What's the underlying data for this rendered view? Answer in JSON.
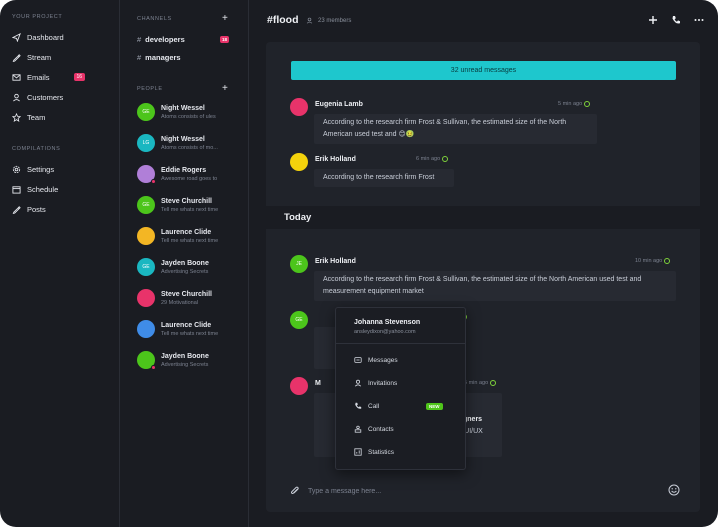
{
  "nav": {
    "section1": "YOUR PROJECT",
    "items": [
      {
        "label": "Dashboard",
        "icon": "send-icon"
      },
      {
        "label": "Stream",
        "icon": "pen-icon"
      },
      {
        "label": "Emails",
        "icon": "mail-icon",
        "badge": "16"
      },
      {
        "label": "Customers",
        "icon": "user-icon"
      },
      {
        "label": "Team",
        "icon": "star-icon"
      }
    ],
    "section2": "COMPILATIONS",
    "items2": [
      {
        "label": "Settings",
        "icon": "gear-icon"
      },
      {
        "label": "Schedule",
        "icon": "calendar-icon"
      },
      {
        "label": "Posts",
        "icon": "pen-icon"
      }
    ]
  },
  "channels": {
    "heading": "CHANNELS",
    "items": [
      {
        "hash": "#",
        "label": "developers",
        "badge": "18"
      },
      {
        "hash": "#",
        "label": "managers"
      }
    ]
  },
  "people": {
    "heading": "PEOPLE",
    "items": [
      {
        "name": "Night Wessel",
        "status": "Atoms consists of ules",
        "initials": "GE",
        "color": "#4cc51b"
      },
      {
        "name": "Night Wessel",
        "status": "Atoms consists of mo...",
        "initials": "LG",
        "color": "#1ab7c1"
      },
      {
        "name": "Eddie Rogers",
        "status": "Awesome road goes to",
        "initials": "",
        "color": "#b07fd8",
        "dot": true
      },
      {
        "name": "Steve Churchill",
        "status": "Tell me whats next time",
        "initials": "GE",
        "color": "#4cc51b"
      },
      {
        "name": "Laurence Clide",
        "status": "Tell me whats next time",
        "initials": "",
        "color": "#f3b624"
      },
      {
        "name": "Jayden Boone",
        "status": "Advertising Secrets",
        "initials": "GE",
        "color": "#1ab7c1"
      },
      {
        "name": "Steve Churchill",
        "status": "29 Motivational",
        "initials": "",
        "color": "#e8336a"
      },
      {
        "name": "Laurence Clide",
        "status": "Tell me whats next time",
        "initials": "",
        "color": "#3f8ce8"
      },
      {
        "name": "Jayden Boone",
        "status": "Advertising Secrets",
        "initials": "",
        "color": "#4cc51b",
        "dot": true
      }
    ]
  },
  "header": {
    "title": "#flood",
    "members": "23 members"
  },
  "unread": "32 unread messages",
  "messages": [
    {
      "name": "Eugenia Lamb",
      "time": "5 min ago",
      "text1": "According to the research firm Frost & Sullivan, the estimated size of the North",
      "text2": "American used test and 😊🤢",
      "color": "#e8336a",
      "initials": ""
    },
    {
      "name": "Erik Holland",
      "time": "6 min ago",
      "text1": "According to the research firm Frost",
      "color": "#f3d20c",
      "initials": ""
    }
  ],
  "today": "Today",
  "today_messages": [
    {
      "name": "Erik Holland",
      "time": "10 min ago",
      "text1": "According to the research firm Frost & Sullivan, the estimated size of the North American used test and",
      "text2": "measurement equipment market",
      "initials": "JE",
      "color": "#4cc51b"
    },
    {
      "name": "",
      "time": "ago",
      "initials": "GE",
      "color": "#4cc51b"
    },
    {
      "name": "M",
      "time": "5 min ago",
      "fragment1": "designers",
      "fragment2": "ups, UI/UX",
      "color": "#e8336a"
    }
  ],
  "popup": {
    "name": "Johanna Stevenson",
    "email": "ansleydixon@yahoo.com",
    "items": [
      {
        "label": "Messages",
        "icon": "message-icon"
      },
      {
        "label": "Invitations",
        "icon": "user-icon"
      },
      {
        "label": "Call",
        "icon": "phone-icon",
        "badge": "NEW"
      },
      {
        "label": "Contacts",
        "icon": "contacts-icon"
      },
      {
        "label": "Statistics",
        "icon": "chart-icon"
      }
    ]
  },
  "composer": {
    "placeholder": "Type a message here..."
  }
}
